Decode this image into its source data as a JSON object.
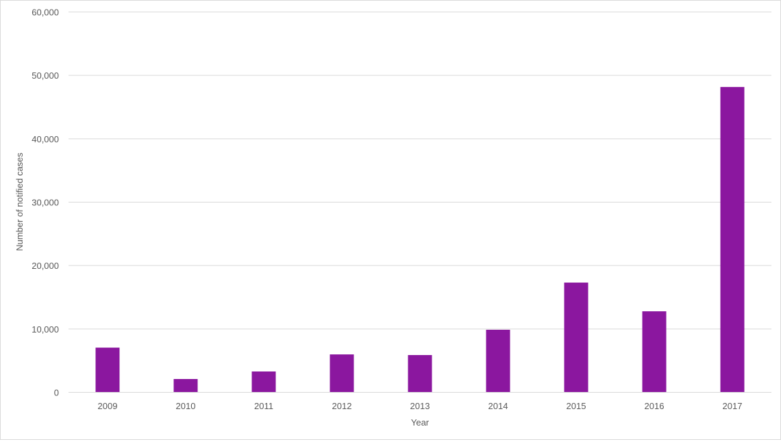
{
  "chart_data": {
    "type": "bar",
    "title": "",
    "xlabel": "Year",
    "ylabel": "Number of notified cases",
    "categories": [
      "2009",
      "2010",
      "2011",
      "2012",
      "2013",
      "2014",
      "2015",
      "2016",
      "2017"
    ],
    "values": [
      7000,
      2050,
      3240,
      5930,
      5830,
      9820,
      17260,
      12730,
      48110
    ],
    "ylim": [
      0,
      60000
    ],
    "yticks": [
      0,
      10000,
      20000,
      30000,
      40000,
      50000,
      60000
    ],
    "ytick_labels": [
      "0",
      "10,000",
      "20,000",
      "30,000",
      "40,000",
      "50,000",
      "60,000"
    ],
    "grid": true,
    "legend": "none",
    "bar_color": "#8B179F"
  }
}
